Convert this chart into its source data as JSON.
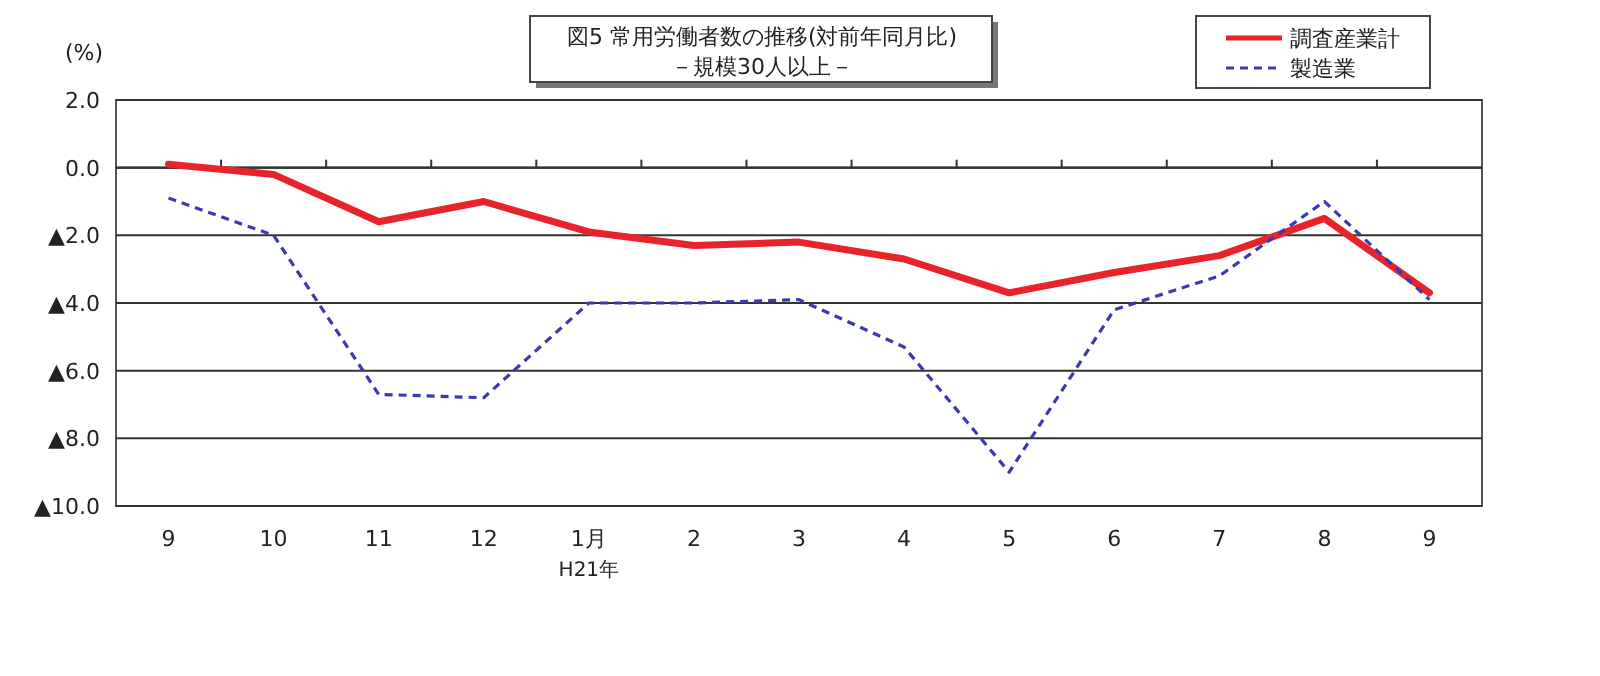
{
  "chart_data": {
    "type": "line",
    "title": "図5 常用労働者数の推移(対前年同月比)",
    "subtitle": "－規模30人以上－",
    "ylabel": "(%)",
    "categories": [
      "9",
      "10",
      "11",
      "12",
      "1月",
      "2",
      "3",
      "4",
      "5",
      "6",
      "7",
      "8",
      "9"
    ],
    "series": [
      {
        "name": "調査産業計",
        "color": "#e8242a",
        "line_style": "solid",
        "values": [
          0.1,
          -0.2,
          -1.6,
          -1.0,
          -1.9,
          -2.3,
          -2.2,
          -2.7,
          -3.7,
          -3.1,
          -2.6,
          -1.5,
          -3.7
        ]
      },
      {
        "name": "製造業",
        "color": "#3a3ab0",
        "line_style": "dashed",
        "values": [
          -0.9,
          -2.0,
          -6.7,
          -6.8,
          -4.0,
          -4.0,
          -3.9,
          -5.3,
          -9.0,
          -4.2,
          -3.2,
          -1.0,
          -3.9
        ]
      }
    ],
    "ylim": [
      -10,
      2
    ],
    "yticks": [
      {
        "value": 2,
        "label": "2.0"
      },
      {
        "value": 0,
        "label": "0.0"
      },
      {
        "value": -2,
        "label": "▲2.0"
      },
      {
        "value": -4,
        "label": "▲4.0"
      },
      {
        "value": -6,
        "label": "▲6.0"
      },
      {
        "value": -8,
        "label": "▲8.0"
      },
      {
        "value": -10,
        "label": "▲10.0"
      }
    ],
    "grid": "y",
    "legend": "top right",
    "annotations": [
      "H21年"
    ]
  }
}
